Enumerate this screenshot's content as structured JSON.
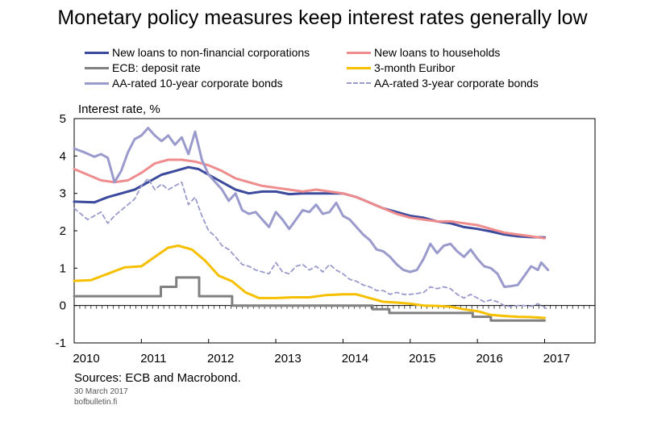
{
  "chart_data": {
    "type": "line",
    "title": "Monetary policy measures keep interest rates generally low",
    "ylabel": "Interest rate, %",
    "xlabel": "",
    "xlim": [
      2010.0,
      2017.75
    ],
    "ylim": [
      -1,
      5
    ],
    "yticks": [
      -1,
      0,
      1,
      2,
      3,
      4,
      5
    ],
    "xtick_labels": [
      "2010",
      "2011",
      "2012",
      "2013",
      "2014",
      "2015",
      "2016",
      "2017"
    ],
    "legend_placement": "top",
    "grid": false,
    "series": [
      {
        "name": "New loans to non-financial corporations",
        "color": "#3b4a9c",
        "dash": "solid",
        "points": [
          [
            2010.0,
            2.78
          ],
          [
            2010.3,
            2.76
          ],
          [
            2010.5,
            2.9
          ],
          [
            2010.7,
            3.0
          ],
          [
            2010.9,
            3.1
          ],
          [
            2011.1,
            3.3
          ],
          [
            2011.3,
            3.5
          ],
          [
            2011.5,
            3.6
          ],
          [
            2011.7,
            3.7
          ],
          [
            2011.85,
            3.65
          ],
          [
            2012.0,
            3.5
          ],
          [
            2012.2,
            3.3
          ],
          [
            2012.4,
            3.1
          ],
          [
            2012.6,
            3.0
          ],
          [
            2012.8,
            3.05
          ],
          [
            2013.0,
            3.05
          ],
          [
            2013.2,
            2.98
          ],
          [
            2013.4,
            3.0
          ],
          [
            2013.6,
            3.0
          ],
          [
            2013.8,
            3.0
          ],
          [
            2014.0,
            3.0
          ],
          [
            2014.2,
            2.9
          ],
          [
            2014.4,
            2.75
          ],
          [
            2014.6,
            2.6
          ],
          [
            2014.8,
            2.5
          ],
          [
            2015.0,
            2.4
          ],
          [
            2015.2,
            2.35
          ],
          [
            2015.4,
            2.25
          ],
          [
            2015.6,
            2.2
          ],
          [
            2015.8,
            2.1
          ],
          [
            2016.0,
            2.05
          ],
          [
            2016.2,
            1.98
          ],
          [
            2016.4,
            1.9
          ],
          [
            2016.6,
            1.85
          ],
          [
            2016.8,
            1.83
          ],
          [
            2017.0,
            1.82
          ]
        ]
      },
      {
        "name": "New loans to households",
        "color": "#ee8c8e",
        "dash": "solid",
        "points": [
          [
            2010.0,
            3.65
          ],
          [
            2010.2,
            3.5
          ],
          [
            2010.4,
            3.35
          ],
          [
            2010.6,
            3.3
          ],
          [
            2010.8,
            3.35
          ],
          [
            2011.0,
            3.55
          ],
          [
            2011.2,
            3.8
          ],
          [
            2011.4,
            3.9
          ],
          [
            2011.6,
            3.9
          ],
          [
            2011.8,
            3.85
          ],
          [
            2012.0,
            3.75
          ],
          [
            2012.2,
            3.6
          ],
          [
            2012.4,
            3.4
          ],
          [
            2012.6,
            3.3
          ],
          [
            2012.8,
            3.2
          ],
          [
            2013.0,
            3.15
          ],
          [
            2013.2,
            3.1
          ],
          [
            2013.4,
            3.05
          ],
          [
            2013.6,
            3.1
          ],
          [
            2013.8,
            3.05
          ],
          [
            2014.0,
            3.0
          ],
          [
            2014.2,
            2.9
          ],
          [
            2014.4,
            2.75
          ],
          [
            2014.6,
            2.6
          ],
          [
            2014.8,
            2.45
          ],
          [
            2015.0,
            2.35
          ],
          [
            2015.2,
            2.3
          ],
          [
            2015.4,
            2.25
          ],
          [
            2015.6,
            2.25
          ],
          [
            2015.8,
            2.2
          ],
          [
            2016.0,
            2.15
          ],
          [
            2016.2,
            2.05
          ],
          [
            2016.4,
            1.95
          ],
          [
            2016.6,
            1.9
          ],
          [
            2016.8,
            1.85
          ],
          [
            2017.0,
            1.8
          ]
        ]
      },
      {
        "name": "ECB: deposit rate",
        "color": "#808080",
        "dash": "solid",
        "step": true,
        "points": [
          [
            2010.0,
            0.25
          ],
          [
            2011.29,
            0.25
          ],
          [
            2011.29,
            0.5
          ],
          [
            2011.52,
            0.5
          ],
          [
            2011.52,
            0.75
          ],
          [
            2011.86,
            0.75
          ],
          [
            2011.86,
            0.25
          ],
          [
            2012.35,
            0.25
          ],
          [
            2012.35,
            0.0
          ],
          [
            2014.44,
            0.0
          ],
          [
            2014.44,
            -0.1
          ],
          [
            2014.69,
            -0.1
          ],
          [
            2014.69,
            -0.2
          ],
          [
            2015.93,
            -0.2
          ],
          [
            2015.93,
            -0.3
          ],
          [
            2016.2,
            -0.3
          ],
          [
            2016.2,
            -0.4
          ],
          [
            2017.0,
            -0.4
          ]
        ]
      },
      {
        "name": "3-month Euribor",
        "color": "#f6c000",
        "dash": "solid",
        "points": [
          [
            2010.0,
            0.66
          ],
          [
            2010.25,
            0.68
          ],
          [
            2010.5,
            0.85
          ],
          [
            2010.75,
            1.02
          ],
          [
            2011.0,
            1.05
          ],
          [
            2011.2,
            1.3
          ],
          [
            2011.4,
            1.55
          ],
          [
            2011.55,
            1.6
          ],
          [
            2011.75,
            1.5
          ],
          [
            2011.95,
            1.2
          ],
          [
            2012.15,
            0.8
          ],
          [
            2012.35,
            0.65
          ],
          [
            2012.55,
            0.35
          ],
          [
            2012.75,
            0.2
          ],
          [
            2013.0,
            0.2
          ],
          [
            2013.25,
            0.22
          ],
          [
            2013.5,
            0.22
          ],
          [
            2013.75,
            0.28
          ],
          [
            2014.0,
            0.3
          ],
          [
            2014.2,
            0.3
          ],
          [
            2014.4,
            0.2
          ],
          [
            2014.6,
            0.1
          ],
          [
            2014.8,
            0.08
          ],
          [
            2015.0,
            0.05
          ],
          [
            2015.2,
            0.0
          ],
          [
            2015.4,
            -0.01
          ],
          [
            2015.6,
            -0.03
          ],
          [
            2015.8,
            -0.1
          ],
          [
            2016.0,
            -0.15
          ],
          [
            2016.2,
            -0.25
          ],
          [
            2016.4,
            -0.28
          ],
          [
            2016.6,
            -0.3
          ],
          [
            2016.8,
            -0.31
          ],
          [
            2017.0,
            -0.33
          ]
        ]
      },
      {
        "name": "AA-rated 10-year corporate bonds",
        "color": "#9a9acd",
        "dash": "solid",
        "points": [
          [
            2010.0,
            4.2
          ],
          [
            2010.15,
            4.1
          ],
          [
            2010.3,
            3.98
          ],
          [
            2010.4,
            4.05
          ],
          [
            2010.5,
            3.95
          ],
          [
            2010.6,
            3.3
          ],
          [
            2010.7,
            3.6
          ],
          [
            2010.8,
            4.1
          ],
          [
            2010.9,
            4.45
          ],
          [
            2011.0,
            4.55
          ],
          [
            2011.1,
            4.75
          ],
          [
            2011.2,
            4.55
          ],
          [
            2011.3,
            4.4
          ],
          [
            2011.4,
            4.55
          ],
          [
            2011.5,
            4.3
          ],
          [
            2011.6,
            4.5
          ],
          [
            2011.7,
            4.05
          ],
          [
            2011.8,
            4.65
          ],
          [
            2011.9,
            3.9
          ],
          [
            2012.0,
            3.5
          ],
          [
            2012.1,
            3.3
          ],
          [
            2012.2,
            3.1
          ],
          [
            2012.3,
            2.8
          ],
          [
            2012.4,
            3.0
          ],
          [
            2012.5,
            2.55
          ],
          [
            2012.6,
            2.45
          ],
          [
            2012.7,
            2.5
          ],
          [
            2012.8,
            2.3
          ],
          [
            2012.9,
            2.1
          ],
          [
            2013.0,
            2.5
          ],
          [
            2013.1,
            2.3
          ],
          [
            2013.2,
            2.05
          ],
          [
            2013.3,
            2.3
          ],
          [
            2013.4,
            2.55
          ],
          [
            2013.5,
            2.5
          ],
          [
            2013.6,
            2.7
          ],
          [
            2013.7,
            2.45
          ],
          [
            2013.8,
            2.5
          ],
          [
            2013.9,
            2.75
          ],
          [
            2014.0,
            2.4
          ],
          [
            2014.1,
            2.3
          ],
          [
            2014.2,
            2.1
          ],
          [
            2014.3,
            1.9
          ],
          [
            2014.4,
            1.75
          ],
          [
            2014.5,
            1.5
          ],
          [
            2014.6,
            1.45
          ],
          [
            2014.7,
            1.3
          ],
          [
            2014.8,
            1.1
          ],
          [
            2014.9,
            0.95
          ],
          [
            2015.0,
            0.9
          ],
          [
            2015.1,
            0.95
          ],
          [
            2015.2,
            1.25
          ],
          [
            2015.3,
            1.65
          ],
          [
            2015.4,
            1.4
          ],
          [
            2015.5,
            1.6
          ],
          [
            2015.6,
            1.65
          ],
          [
            2015.7,
            1.45
          ],
          [
            2015.8,
            1.3
          ],
          [
            2015.9,
            1.5
          ],
          [
            2016.0,
            1.25
          ],
          [
            2016.1,
            1.05
          ],
          [
            2016.2,
            1.0
          ],
          [
            2016.3,
            0.85
          ],
          [
            2016.4,
            0.5
          ],
          [
            2016.5,
            0.52
          ],
          [
            2016.6,
            0.55
          ],
          [
            2016.7,
            0.8
          ],
          [
            2016.8,
            1.05
          ],
          [
            2016.9,
            0.95
          ],
          [
            2016.95,
            1.15
          ],
          [
            2017.05,
            0.95
          ]
        ]
      },
      {
        "name": "AA-rated 3-year corporate bonds",
        "color": "#9a9acd",
        "dash": "dashed",
        "points": [
          [
            2010.0,
            2.6
          ],
          [
            2010.1,
            2.45
          ],
          [
            2010.2,
            2.3
          ],
          [
            2010.3,
            2.4
          ],
          [
            2010.4,
            2.5
          ],
          [
            2010.5,
            2.2
          ],
          [
            2010.6,
            2.4
          ],
          [
            2010.7,
            2.55
          ],
          [
            2010.8,
            2.7
          ],
          [
            2010.9,
            2.85
          ],
          [
            2011.0,
            3.2
          ],
          [
            2011.1,
            3.4
          ],
          [
            2011.2,
            3.1
          ],
          [
            2011.3,
            3.25
          ],
          [
            2011.4,
            3.1
          ],
          [
            2011.5,
            3.2
          ],
          [
            2011.6,
            3.3
          ],
          [
            2011.7,
            2.7
          ],
          [
            2011.8,
            2.9
          ],
          [
            2011.9,
            2.4
          ],
          [
            2012.0,
            2.0
          ],
          [
            2012.1,
            1.85
          ],
          [
            2012.2,
            1.6
          ],
          [
            2012.3,
            1.5
          ],
          [
            2012.4,
            1.3
          ],
          [
            2012.5,
            1.1
          ],
          [
            2012.6,
            1.05
          ],
          [
            2012.7,
            0.95
          ],
          [
            2012.8,
            0.9
          ],
          [
            2012.9,
            0.85
          ],
          [
            2013.0,
            1.15
          ],
          [
            2013.1,
            0.9
          ],
          [
            2013.2,
            0.85
          ],
          [
            2013.3,
            1.05
          ],
          [
            2013.4,
            1.1
          ],
          [
            2013.5,
            0.95
          ],
          [
            2013.6,
            1.05
          ],
          [
            2013.7,
            0.9
          ],
          [
            2013.8,
            1.1
          ],
          [
            2013.9,
            0.95
          ],
          [
            2014.0,
            0.85
          ],
          [
            2014.1,
            0.7
          ],
          [
            2014.2,
            0.65
          ],
          [
            2014.3,
            0.55
          ],
          [
            2014.4,
            0.5
          ],
          [
            2014.5,
            0.4
          ],
          [
            2014.6,
            0.4
          ],
          [
            2014.7,
            0.3
          ],
          [
            2014.8,
            0.35
          ],
          [
            2014.9,
            0.3
          ],
          [
            2015.0,
            0.3
          ],
          [
            2015.1,
            0.32
          ],
          [
            2015.2,
            0.35
          ],
          [
            2015.3,
            0.5
          ],
          [
            2015.4,
            0.45
          ],
          [
            2015.5,
            0.5
          ],
          [
            2015.6,
            0.45
          ],
          [
            2015.7,
            0.3
          ],
          [
            2015.8,
            0.2
          ],
          [
            2015.9,
            0.3
          ],
          [
            2016.0,
            0.2
          ],
          [
            2016.1,
            0.1
          ],
          [
            2016.2,
            0.15
          ],
          [
            2016.3,
            0.1
          ],
          [
            2016.4,
            0.0
          ],
          [
            2016.5,
            -0.03
          ],
          [
            2016.6,
            0.0
          ],
          [
            2016.7,
            0.0
          ],
          [
            2016.8,
            -0.02
          ],
          [
            2016.9,
            0.05
          ],
          [
            2017.0,
            -0.05
          ],
          [
            2017.05,
            -0.1
          ]
        ]
      }
    ]
  },
  "sources": "Sources: ECB and Macrobond.",
  "date_note": "30 March 2017",
  "site_note": "bofbulletin.fi"
}
